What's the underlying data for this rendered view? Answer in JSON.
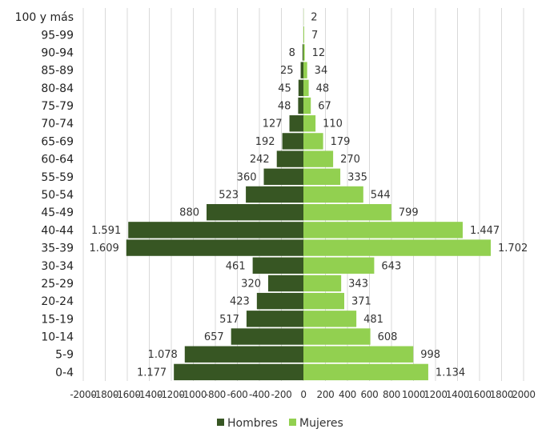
{
  "chart_data": {
    "type": "bar",
    "orientation": "horizontal",
    "categories": [
      "100 y más",
      "95-99",
      "90-94",
      "85-89",
      "80-84",
      "75-79",
      "70-74",
      "65-69",
      "60-64",
      "55-59",
      "50-54",
      "45-49",
      "40-44",
      "35-39",
      "30-34",
      "25-29",
      "20-24",
      "15-19",
      "10-14",
      "5-9",
      "0-4"
    ],
    "series": [
      {
        "name": "Hombres",
        "color": "#375623",
        "values": [
          0,
          0,
          -8,
          -25,
          -45,
          -48,
          -127,
          -192,
          -242,
          -360,
          -523,
          -880,
          -1591,
          -1609,
          -461,
          -320,
          -423,
          -517,
          -657,
          -1078,
          -1177
        ],
        "labels": [
          "",
          "",
          "8",
          "25",
          "45",
          "48",
          "127",
          "192",
          "242",
          "360",
          "523",
          "880",
          "1.591",
          "1.609",
          "461",
          "320",
          "423",
          "517",
          "657",
          "1.078",
          "1.177"
        ]
      },
      {
        "name": "Mujeres",
        "color": "#92d050",
        "values": [
          2,
          7,
          12,
          34,
          48,
          67,
          110,
          179,
          270,
          335,
          544,
          799,
          1447,
          1702,
          643,
          343,
          371,
          481,
          608,
          998,
          1134
        ],
        "labels": [
          "2",
          "7",
          "12",
          "34",
          "48",
          "67",
          "110",
          "179",
          "270",
          "335",
          "544",
          "799",
          "1.447",
          "1.702",
          "643",
          "343",
          "371",
          "481",
          "608",
          "998",
          "1.134"
        ]
      }
    ],
    "xlim": [
      -2000,
      2000
    ],
    "xticks": [
      -2000,
      -1800,
      -1600,
      -1400,
      -1200,
      -1000,
      -800,
      -600,
      -400,
      -200,
      0,
      200,
      400,
      600,
      800,
      1000,
      1200,
      1400,
      1600,
      1800,
      2000
    ],
    "xtick_labels": [
      "-2000",
      "-1800",
      "-1600",
      "-1400",
      "-1200",
      "-1000",
      "-800",
      "-600",
      "-400",
      "-200",
      "0",
      "200",
      "400",
      "600",
      "800",
      "1000",
      "1200",
      "1400",
      "1600",
      "1800",
      "2000"
    ],
    "grid": true,
    "legend": "bottom"
  }
}
